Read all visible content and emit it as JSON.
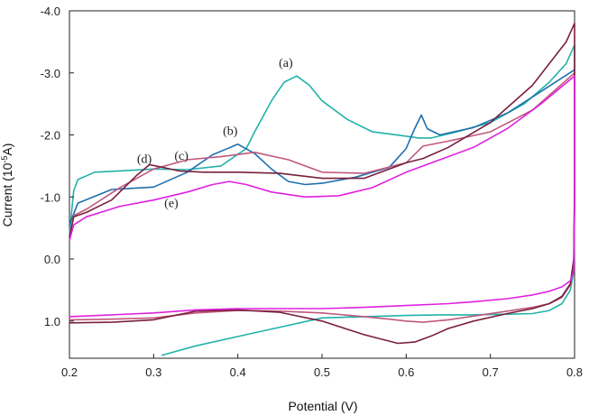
{
  "chart_data": {
    "type": "line",
    "title": "",
    "xlabel": "Potential (V)",
    "ylabel": "Current (10",
    "ylabel_exp": "-5",
    "ylabel_unit": "A)",
    "xlim": [
      0.2,
      0.8
    ],
    "ylim": [
      1.6,
      -4.0
    ],
    "x_ticks": [
      0.2,
      0.3,
      0.4,
      0.5,
      0.6,
      0.7,
      0.8
    ],
    "x_tick_labels": [
      "0.2",
      "0.3",
      "0.4",
      "0.5",
      "0.6",
      "0.7",
      "0.8"
    ],
    "y_ticks": [
      -4.0,
      -3.0,
      -2.0,
      -1.0,
      0.0,
      1.0
    ],
    "y_tick_labels": [
      "-4.0",
      "-3.0",
      "-2.0",
      "-1.0",
      "0.0",
      "1.0"
    ],
    "grid": false,
    "series": [
      {
        "name": "(a)",
        "color": "#20b2aa",
        "x": [
          0.2,
          0.205,
          0.21,
          0.23,
          0.26,
          0.3,
          0.34,
          0.38,
          0.41,
          0.42,
          0.44,
          0.455,
          0.47,
          0.485,
          0.5,
          0.53,
          0.56,
          0.6,
          0.615,
          0.63,
          0.66,
          0.7,
          0.74,
          0.77,
          0.79,
          0.8,
          0.8,
          0.799,
          0.795,
          0.785,
          0.77,
          0.75,
          0.72,
          0.68,
          0.64,
          0.6,
          0.55,
          0.5,
          0.45,
          0.4,
          0.35,
          0.31
        ],
        "y": [
          -0.4,
          -1.1,
          -1.28,
          -1.4,
          -1.42,
          -1.45,
          -1.44,
          -1.5,
          -1.78,
          -2.05,
          -2.55,
          -2.85,
          -2.95,
          -2.8,
          -2.55,
          -2.25,
          -2.05,
          -1.98,
          -1.95,
          -1.95,
          -2.05,
          -2.2,
          -2.5,
          -2.85,
          -3.15,
          -3.45,
          -1.0,
          0.2,
          0.5,
          0.72,
          0.83,
          0.88,
          0.89,
          0.9,
          0.9,
          0.91,
          0.93,
          0.95,
          1.1,
          1.25,
          1.4,
          1.55
        ]
      },
      {
        "name": "(b)",
        "color": "#1f6fae",
        "x": [
          0.2,
          0.21,
          0.25,
          0.3,
          0.34,
          0.37,
          0.4,
          0.42,
          0.44,
          0.46,
          0.48,
          0.5,
          0.54,
          0.58,
          0.6,
          0.61,
          0.618,
          0.625,
          0.64,
          0.68,
          0.72,
          0.76,
          0.8
        ],
        "y": [
          -0.55,
          -0.9,
          -1.12,
          -1.16,
          -1.4,
          -1.68,
          -1.85,
          -1.7,
          -1.45,
          -1.25,
          -1.2,
          -1.22,
          -1.32,
          -1.48,
          -1.78,
          -2.1,
          -2.32,
          -2.1,
          -2.0,
          -2.12,
          -2.35,
          -2.7,
          -3.05
        ]
      },
      {
        "name": "(c)",
        "color": "#c0587e",
        "x": [
          0.2,
          0.205,
          0.22,
          0.26,
          0.3,
          0.34,
          0.38,
          0.42,
          0.46,
          0.5,
          0.55,
          0.6,
          0.62,
          0.65,
          0.7,
          0.75,
          0.8,
          0.8,
          0.799,
          0.795,
          0.785,
          0.77,
          0.75,
          0.72,
          0.68,
          0.65,
          0.62,
          0.6,
          0.58,
          0.55,
          0.5,
          0.45,
          0.4,
          0.35,
          0.3,
          0.25,
          0.2
        ],
        "y": [
          -0.35,
          -0.7,
          -0.8,
          -1.15,
          -1.45,
          -1.6,
          -1.65,
          -1.72,
          -1.6,
          -1.4,
          -1.38,
          -1.55,
          -1.82,
          -1.9,
          -2.05,
          -2.4,
          -3.0,
          -1.0,
          0.1,
          0.42,
          0.62,
          0.72,
          0.78,
          0.84,
          0.92,
          0.98,
          1.02,
          1.0,
          0.97,
          0.93,
          0.87,
          0.84,
          0.83,
          0.87,
          0.95,
          0.97,
          0.98
        ]
      },
      {
        "name": "(d)",
        "color": "#7a1f3d",
        "x": [
          0.2,
          0.205,
          0.22,
          0.25,
          0.28,
          0.295,
          0.31,
          0.33,
          0.36,
          0.4,
          0.45,
          0.5,
          0.55,
          0.6,
          0.62,
          0.65,
          0.7,
          0.75,
          0.79,
          0.8,
          0.8,
          0.799,
          0.795,
          0.785,
          0.77,
          0.75,
          0.72,
          0.68,
          0.65,
          0.63,
          0.61,
          0.59,
          0.55,
          0.5,
          0.45,
          0.4,
          0.35,
          0.3,
          0.25,
          0.2
        ],
        "y": [
          -0.35,
          -0.68,
          -0.75,
          -0.95,
          -1.35,
          -1.52,
          -1.48,
          -1.42,
          -1.4,
          -1.4,
          -1.38,
          -1.3,
          -1.3,
          -1.55,
          -1.62,
          -1.8,
          -2.2,
          -2.8,
          -3.5,
          -3.8,
          -1.2,
          0.0,
          0.4,
          0.6,
          0.72,
          0.8,
          0.88,
          1.0,
          1.12,
          1.24,
          1.34,
          1.36,
          1.22,
          1.0,
          0.86,
          0.82,
          0.84,
          0.98,
          1.02,
          1.03
        ]
      },
      {
        "name": "(e)",
        "color": "#e020e0",
        "x": [
          0.2,
          0.205,
          0.22,
          0.26,
          0.3,
          0.34,
          0.37,
          0.39,
          0.41,
          0.44,
          0.48,
          0.52,
          0.56,
          0.6,
          0.64,
          0.68,
          0.72,
          0.76,
          0.8,
          0.8,
          0.799,
          0.795,
          0.785,
          0.77,
          0.75,
          0.72,
          0.68,
          0.65,
          0.6,
          0.55,
          0.5,
          0.45,
          0.4,
          0.35,
          0.3,
          0.25,
          0.2
        ],
        "y": [
          -0.3,
          -0.55,
          -0.68,
          -0.85,
          -0.95,
          -1.08,
          -1.2,
          -1.25,
          -1.2,
          -1.08,
          -1.0,
          -1.02,
          -1.15,
          -1.4,
          -1.6,
          -1.8,
          -2.1,
          -2.5,
          -2.95,
          -0.8,
          0.2,
          0.35,
          0.45,
          0.52,
          0.58,
          0.64,
          0.69,
          0.72,
          0.75,
          0.78,
          0.8,
          0.8,
          0.8,
          0.82,
          0.87,
          0.9,
          0.93
        ]
      }
    ],
    "annotations": [
      {
        "text": "(a)",
        "x": 0.457,
        "y": -3.1
      },
      {
        "text": "(b)",
        "x": 0.391,
        "y": -2.0
      },
      {
        "text": "(c)",
        "x": 0.333,
        "y": -1.6
      },
      {
        "text": "(d)",
        "x": 0.289,
        "y": -1.55
      },
      {
        "text": "(e)",
        "x": 0.321,
        "y": -0.84
      }
    ]
  }
}
